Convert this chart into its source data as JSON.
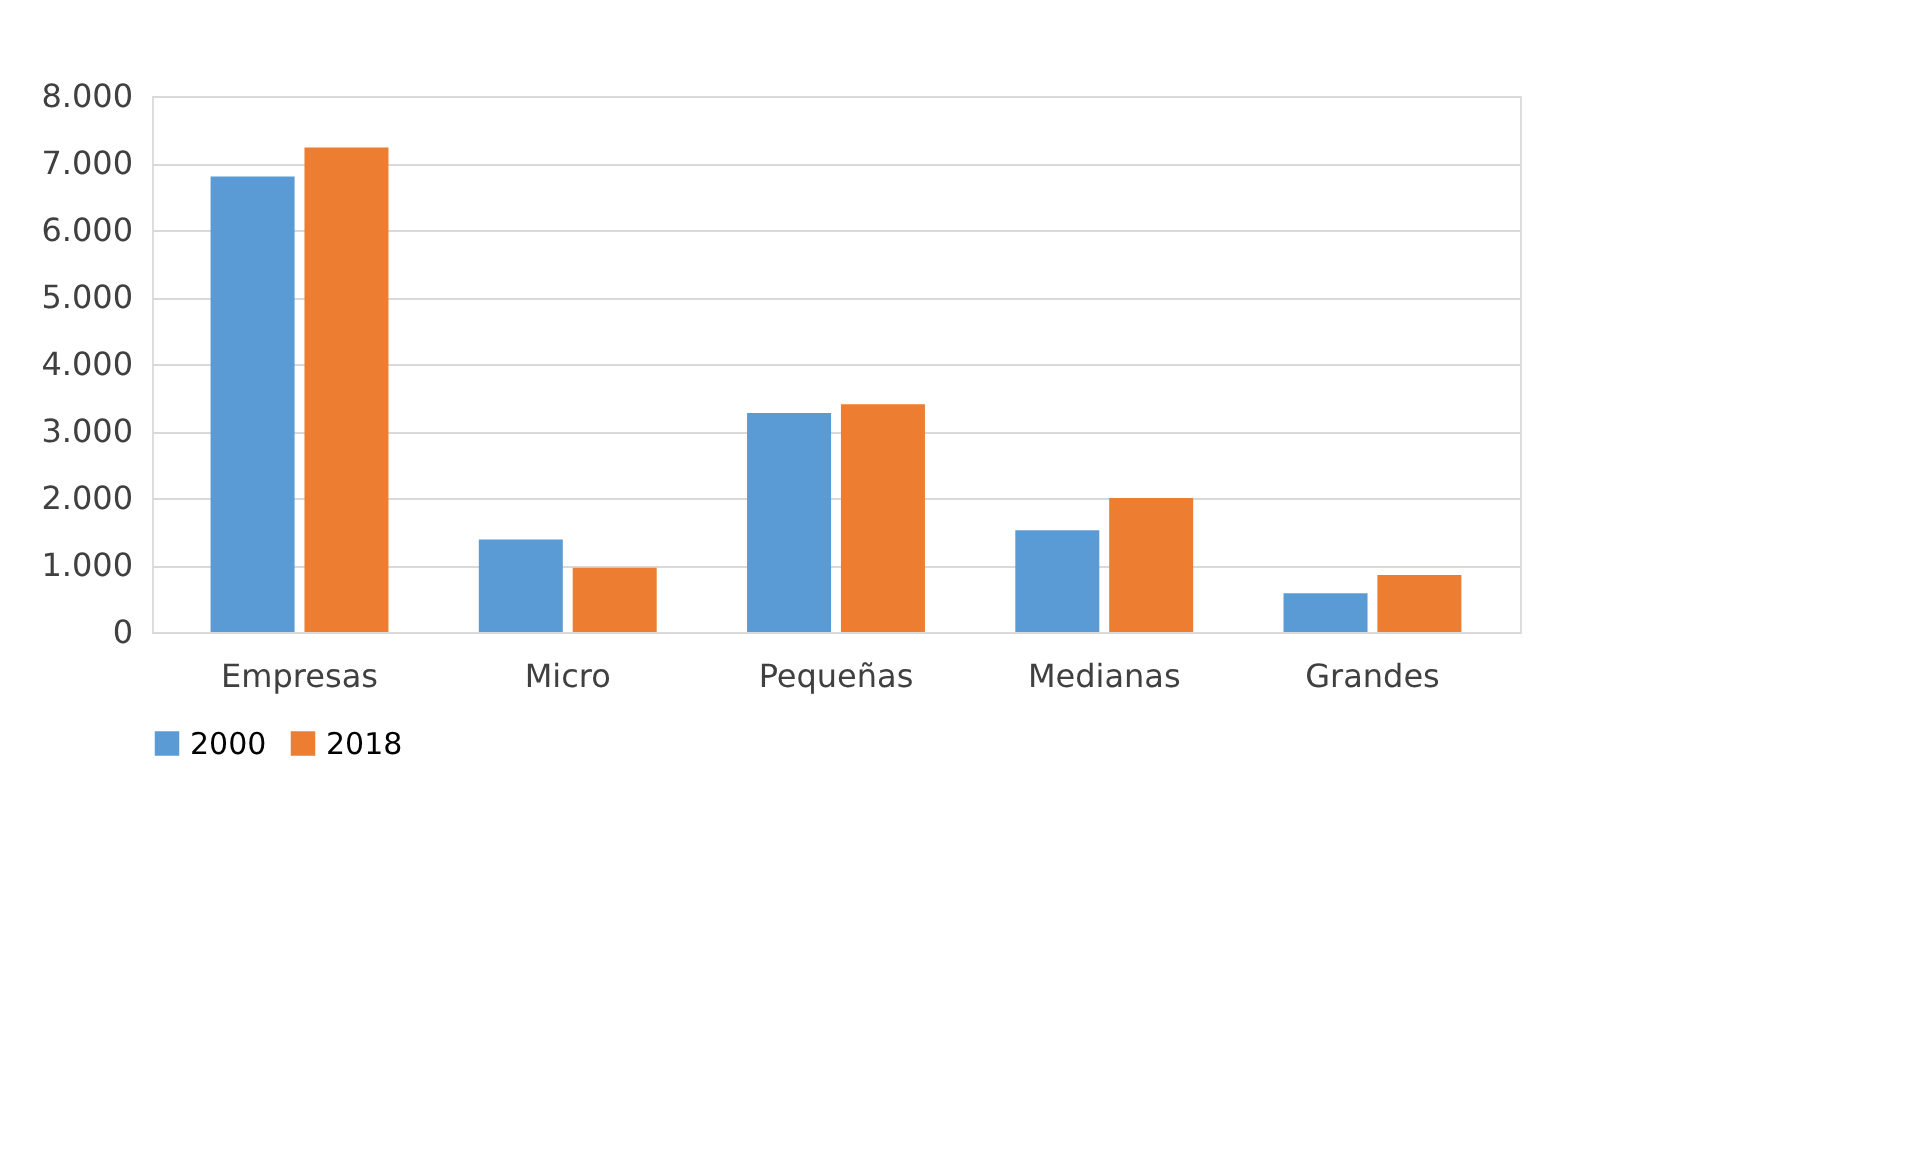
{
  "chart_data": {
    "type": "bar",
    "categories": [
      "Empresas",
      "Micro",
      "Pequeñas",
      "Medianas",
      "Grandes"
    ],
    "series": [
      {
        "name": "2000",
        "color": "#5b9bd5",
        "values": [
          6800,
          1380,
          3270,
          1520,
          580
        ]
      },
      {
        "name": "2018",
        "color": "#ed7d31",
        "values": [
          7230,
          960,
          3400,
          2000,
          850
        ]
      }
    ],
    "ylim": [
      0,
      8000
    ],
    "yticks": [
      0,
      {
        "value": 1000,
        "label": "1.000"
      },
      {
        "value": 2000,
        "label": "2.000"
      },
      {
        "value": 3000,
        "label": "3.000"
      },
      {
        "value": 4000,
        "label": "4.000"
      },
      {
        "value": 5000,
        "label": "5.000"
      },
      {
        "value": 6000,
        "label": "6.000"
      },
      {
        "value": 7000,
        "label": "7.000"
      },
      {
        "value": 8000,
        "label": "8.000"
      }
    ],
    "grid": "y",
    "legend": "bottom"
  }
}
